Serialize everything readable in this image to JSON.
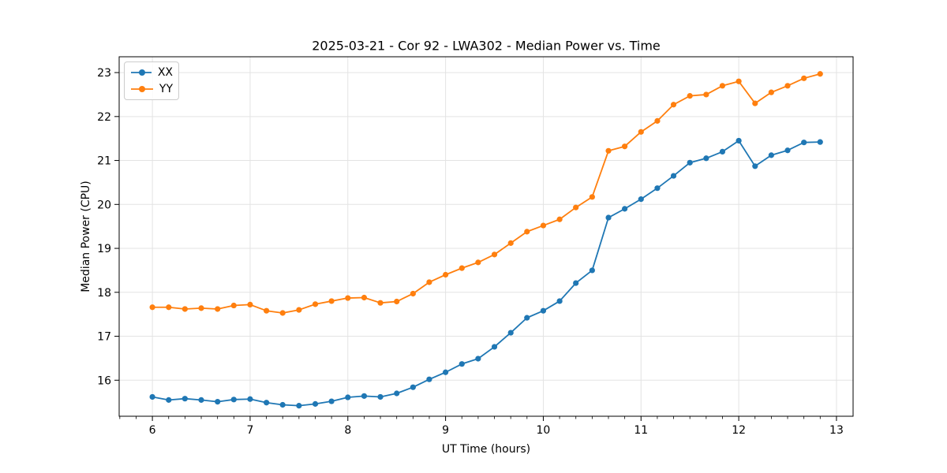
{
  "chart_data": {
    "type": "line",
    "title": "2025-03-21 - Cor 92 - LWA302 - Median Power vs. Time",
    "xlabel": "UT Time (hours)",
    "ylabel": "Median Power (CPU)",
    "xlim": [
      5.66,
      13.17
    ],
    "ylim": [
      15.18,
      23.36
    ],
    "xticks": [
      6,
      7,
      8,
      9,
      10,
      11,
      12,
      13
    ],
    "yticks": [
      16,
      17,
      18,
      19,
      20,
      21,
      22,
      23
    ],
    "minor_xtick_step_hours": 0.1667,
    "grid": true,
    "grid_color": "#e3e3e3",
    "spine_color": "#000000",
    "legend_position": "upper-left",
    "x": [
      6.0,
      6.167,
      6.333,
      6.5,
      6.667,
      6.833,
      7.0,
      7.167,
      7.333,
      7.5,
      7.667,
      7.833,
      8.0,
      8.167,
      8.333,
      8.5,
      8.667,
      8.833,
      9.0,
      9.167,
      9.333,
      9.5,
      9.667,
      9.833,
      10.0,
      10.167,
      10.333,
      10.5,
      10.667,
      10.833,
      11.0,
      11.167,
      11.333,
      11.5,
      11.667,
      11.833,
      12.0,
      12.167,
      12.333,
      12.5,
      12.667,
      12.833
    ],
    "series": [
      {
        "name": "XX",
        "color": "#1f77b4",
        "values": [
          15.62,
          15.55,
          15.58,
          15.55,
          15.51,
          15.56,
          15.57,
          15.49,
          15.44,
          15.42,
          15.46,
          15.52,
          15.61,
          15.64,
          15.62,
          15.7,
          15.84,
          16.02,
          16.18,
          16.37,
          16.49,
          16.76,
          17.08,
          17.42,
          17.58,
          17.8,
          18.21,
          18.5,
          19.7,
          19.9,
          20.12,
          20.37,
          20.65,
          20.95,
          21.05,
          21.2,
          21.45,
          20.87,
          21.12,
          21.23,
          21.41,
          21.42
        ]
      },
      {
        "name": "YY",
        "color": "#ff7f0e",
        "values": [
          17.66,
          17.66,
          17.62,
          17.64,
          17.62,
          17.7,
          17.72,
          17.58,
          17.53,
          17.6,
          17.73,
          17.8,
          17.87,
          17.88,
          17.76,
          17.79,
          17.97,
          18.23,
          18.4,
          18.55,
          18.68,
          18.86,
          19.12,
          19.38,
          19.52,
          19.66,
          19.93,
          20.17,
          21.22,
          21.32,
          21.65,
          21.9,
          22.27,
          22.47,
          22.5,
          22.7,
          22.8,
          22.3,
          22.55,
          22.7,
          22.87,
          22.97
        ]
      }
    ]
  }
}
